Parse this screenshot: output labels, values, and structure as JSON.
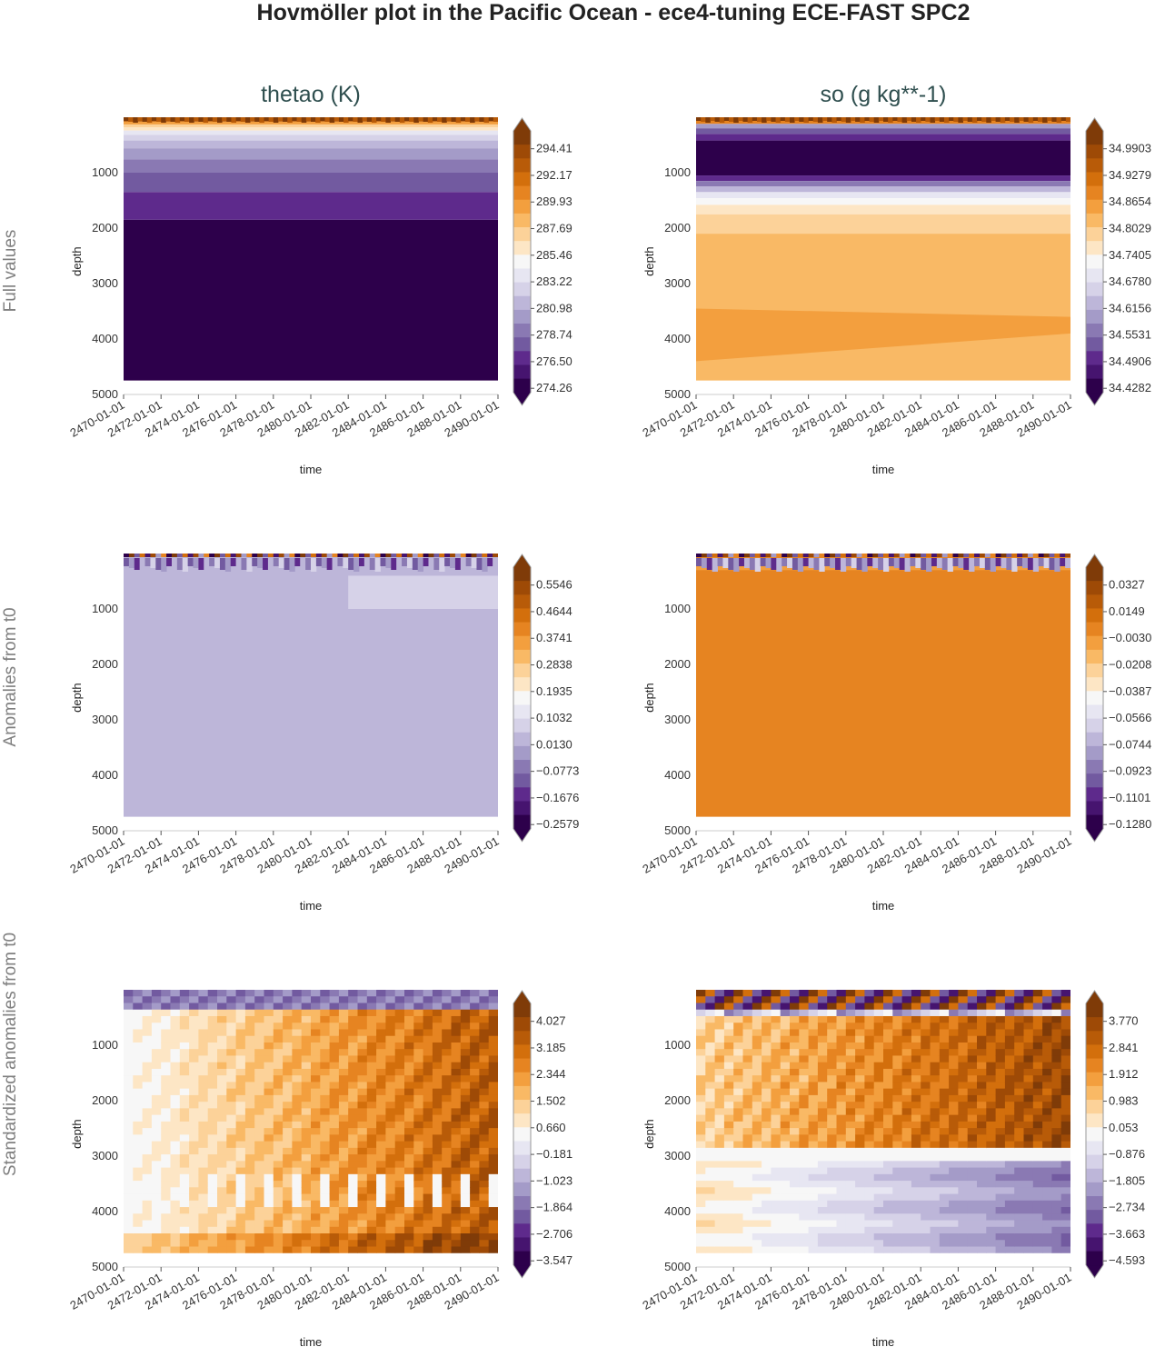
{
  "figure": {
    "title": "Hovmöller plot in the Pacific Ocean - ece4-tuning ECE-FAST SPC2",
    "column_titles": [
      "thetao (K)",
      "so (g kg**-1)"
    ],
    "row_labels": [
      "Full values",
      "Anomalies from t0",
      "Standardized anomalies from t0"
    ]
  },
  "axes_common": {
    "xlabel": "time",
    "ylabel": "depth",
    "x_ticks": [
      "2470-01-01",
      "2472-01-01",
      "2474-01-01",
      "2476-01-01",
      "2478-01-01",
      "2480-01-01",
      "2482-01-01",
      "2484-01-01",
      "2486-01-01",
      "2488-01-01",
      "2490-01-01"
    ],
    "y_ticks": [
      "1000",
      "2000",
      "3000",
      "4000",
      "5000"
    ],
    "y_tick_values": [
      1000,
      2000,
      3000,
      4000,
      5000
    ],
    "ylim": [
      5000,
      0
    ],
    "data_depth_max": 4750
  },
  "palette": [
    "#2d004b",
    "#46146f",
    "#5e2a8c",
    "#725aa0",
    "#8a79b3",
    "#a49bc8",
    "#bdb6d9",
    "#d6d2e8",
    "#e7e6f2",
    "#f7f7f7",
    "#fde6c5",
    "#fcd299",
    "#f9b965",
    "#f39f3e",
    "#e68421",
    "#d36f0c",
    "#b85b08",
    "#9e4a06",
    "#7f3b08"
  ],
  "chart_data": [
    {
      "type": "heatmap",
      "panel": "full-thetao",
      "variable": "thetao",
      "units": "K",
      "row": "Full values",
      "xlabel": "time",
      "ylabel": "depth",
      "colorbar_ticks": [
        "294.41",
        "292.17",
        "289.93",
        "287.69",
        "285.46",
        "283.22",
        "280.98",
        "278.74",
        "276.50",
        "274.26"
      ],
      "depth_bands": [
        {
          "top": 0,
          "bottom": 40,
          "c": 18
        },
        {
          "top": 40,
          "bottom": 80,
          "c": 16
        },
        {
          "top": 80,
          "bottom": 130,
          "c": 13
        },
        {
          "top": 130,
          "bottom": 180,
          "c": 11
        },
        {
          "top": 180,
          "bottom": 240,
          "c": 10
        },
        {
          "top": 240,
          "bottom": 320,
          "c": 8
        },
        {
          "top": 320,
          "bottom": 420,
          "c": 7
        },
        {
          "top": 420,
          "bottom": 560,
          "c": 6
        },
        {
          "top": 560,
          "bottom": 760,
          "c": 5
        },
        {
          "top": 760,
          "bottom": 1000,
          "c": 4
        },
        {
          "top": 1000,
          "bottom": 1350,
          "c": 3
        },
        {
          "top": 1350,
          "bottom": 1850,
          "c": 2
        },
        {
          "top": 1850,
          "bottom": 4750,
          "c": 0
        }
      ]
    },
    {
      "type": "heatmap",
      "panel": "full-so",
      "variable": "so",
      "units": "g kg**-1",
      "row": "Full values",
      "xlabel": "time",
      "ylabel": "depth",
      "colorbar_ticks": [
        "34.9903",
        "34.9279",
        "34.8654",
        "34.8029",
        "34.7405",
        "34.6780",
        "34.6156",
        "34.5531",
        "34.4906",
        "34.4282"
      ],
      "depth_bands": [
        {
          "top": 0,
          "bottom": 60,
          "c": 17
        },
        {
          "top": 60,
          "bottom": 120,
          "c": 14
        },
        {
          "top": 120,
          "bottom": 200,
          "c": 5
        },
        {
          "top": 200,
          "bottom": 300,
          "c": 3
        },
        {
          "top": 300,
          "bottom": 420,
          "c": 2
        },
        {
          "top": 420,
          "bottom": 1050,
          "c": 0
        },
        {
          "top": 1050,
          "bottom": 1150,
          "c": 2
        },
        {
          "top": 1150,
          "bottom": 1250,
          "c": 4
        },
        {
          "top": 1250,
          "bottom": 1350,
          "c": 6
        },
        {
          "top": 1350,
          "bottom": 1460,
          "c": 8
        },
        {
          "top": 1460,
          "bottom": 1580,
          "c": 9
        },
        {
          "top": 1580,
          "bottom": 1750,
          "c": 10
        },
        {
          "top": 1750,
          "bottom": 2100,
          "c": 11
        },
        {
          "top": 2100,
          "bottom": 4750,
          "c": 12
        }
      ],
      "wedge": {
        "c": 13,
        "top_start": 3450,
        "top_end": 3600,
        "bottom_start": 4400,
        "bottom_end": 3900
      }
    },
    {
      "type": "heatmap",
      "panel": "anom-thetao",
      "variable": "thetao",
      "units": "K",
      "row": "Anomalies from t0",
      "xlabel": "time",
      "ylabel": "depth",
      "colorbar_ticks": [
        "0.5546",
        "0.4644",
        "0.3741",
        "0.2838",
        "0.1935",
        "0.1032",
        "0.0130",
        "−0.0773",
        "−0.1676",
        "−0.2579"
      ],
      "base_c": 6,
      "surface_noise": true,
      "patch": {
        "c": 7,
        "t_start": 0.6,
        "t_end": 1.0,
        "top": 400,
        "bottom": 1000
      }
    },
    {
      "type": "heatmap",
      "panel": "anom-so",
      "variable": "so",
      "units": "g kg**-1",
      "row": "Anomalies from t0",
      "xlabel": "time",
      "ylabel": "depth",
      "colorbar_ticks": [
        "0.0327",
        "0.0149",
        "−0.0030",
        "−0.0208",
        "−0.0387",
        "−0.0566",
        "−0.0744",
        "−0.0923",
        "−0.1101",
        "−0.1280"
      ],
      "base_c": 14,
      "surface_noise": true,
      "patch": {
        "c": 13,
        "t_start": 0.0,
        "t_end": 1.0,
        "top": 80,
        "bottom": 300
      }
    },
    {
      "type": "heatmap",
      "panel": "std-thetao",
      "variable": "thetao",
      "units": "K",
      "row": "Standardized anomalies from t0",
      "xlabel": "time",
      "ylabel": "depth",
      "colorbar_ticks": [
        "4.027",
        "3.185",
        "2.344",
        "1.502",
        "0.660",
        "−0.181",
        "−1.023",
        "−1.864",
        "−2.706",
        "−3.547"
      ],
      "gradient": {
        "start_c": 9,
        "end_c": 16,
        "surface_c": 3,
        "ripple": true
      }
    },
    {
      "type": "heatmap",
      "panel": "std-so",
      "variable": "so",
      "units": "g kg**-1",
      "row": "Standardized anomalies from t0",
      "xlabel": "time",
      "ylabel": "depth",
      "colorbar_ticks": [
        "3.770",
        "2.841",
        "1.912",
        "0.983",
        "0.053",
        "−0.876",
        "−1.805",
        "−2.734",
        "−3.663",
        "−4.593"
      ],
      "upper": {
        "start_c": 11,
        "end_c": 17,
        "until": 2850
      },
      "lower": {
        "start_c": 10,
        "end_c": 4,
        "from": 3100
      }
    }
  ]
}
